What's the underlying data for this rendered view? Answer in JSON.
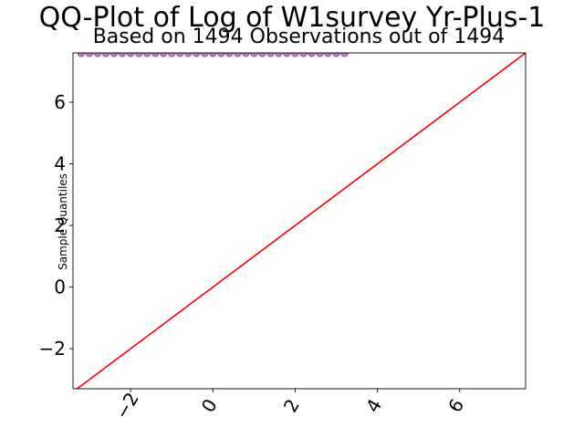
{
  "chart_data": {
    "type": "scatter",
    "title": "QQ-Plot of Log of W1survey Yr-Plus-1",
    "subtitle": "Based on 1494 Observations out of 1494",
    "xlabel": "",
    "ylabel": "Sample Quantiles",
    "xlim": [
      -3.4,
      7.6
    ],
    "ylim": [
      -3.3,
      7.6
    ],
    "x_ticks": [
      -2,
      0,
      2,
      4,
      6
    ],
    "x_tick_labels": [
      "−2",
      "0",
      "2",
      "4",
      "6"
    ],
    "y_ticks": [
      -2,
      0,
      2,
      4,
      6
    ],
    "y_tick_labels": [
      "−2",
      "0",
      "2",
      "4",
      "6"
    ],
    "grid": false,
    "legend": "none",
    "reference_line": {
      "x": [
        -3.4,
        7.6
      ],
      "y": [
        -3.4,
        7.6
      ],
      "color": "#ff0000"
    },
    "series": [
      {
        "color": "#800080",
        "points": [
          {
            "x": -3.2,
            "y": 7.6
          },
          {
            "x": -3.0,
            "y": 7.6
          },
          {
            "x": -2.8,
            "y": 7.6
          },
          {
            "x": -2.6,
            "y": 7.6
          },
          {
            "x": -2.4,
            "y": 7.6
          },
          {
            "x": -2.2,
            "y": 7.6
          },
          {
            "x": -2.0,
            "y": 7.6
          },
          {
            "x": -1.8,
            "y": 7.6
          },
          {
            "x": -1.6,
            "y": 7.6
          },
          {
            "x": -1.4,
            "y": 7.6
          },
          {
            "x": -1.2,
            "y": 7.6
          },
          {
            "x": -1.0,
            "y": 7.6
          },
          {
            "x": -0.8,
            "y": 7.6
          },
          {
            "x": -0.6,
            "y": 7.6
          },
          {
            "x": -0.4,
            "y": 7.6
          },
          {
            "x": -0.2,
            "y": 7.6
          },
          {
            "x": 0.0,
            "y": 7.6
          },
          {
            "x": 0.2,
            "y": 7.6
          },
          {
            "x": 0.4,
            "y": 7.6
          },
          {
            "x": 0.6,
            "y": 7.6
          },
          {
            "x": 0.8,
            "y": 7.6
          },
          {
            "x": 1.0,
            "y": 7.6
          },
          {
            "x": 1.2,
            "y": 7.6
          },
          {
            "x": 1.4,
            "y": 7.6
          },
          {
            "x": 1.6,
            "y": 7.6
          },
          {
            "x": 1.8,
            "y": 7.6
          },
          {
            "x": 2.0,
            "y": 7.6
          },
          {
            "x": 2.2,
            "y": 7.6
          },
          {
            "x": 2.4,
            "y": 7.6
          },
          {
            "x": 2.6,
            "y": 7.6
          },
          {
            "x": 2.8,
            "y": 7.6
          },
          {
            "x": 3.0,
            "y": 7.6
          },
          {
            "x": 3.2,
            "y": 7.6
          }
        ]
      }
    ]
  }
}
